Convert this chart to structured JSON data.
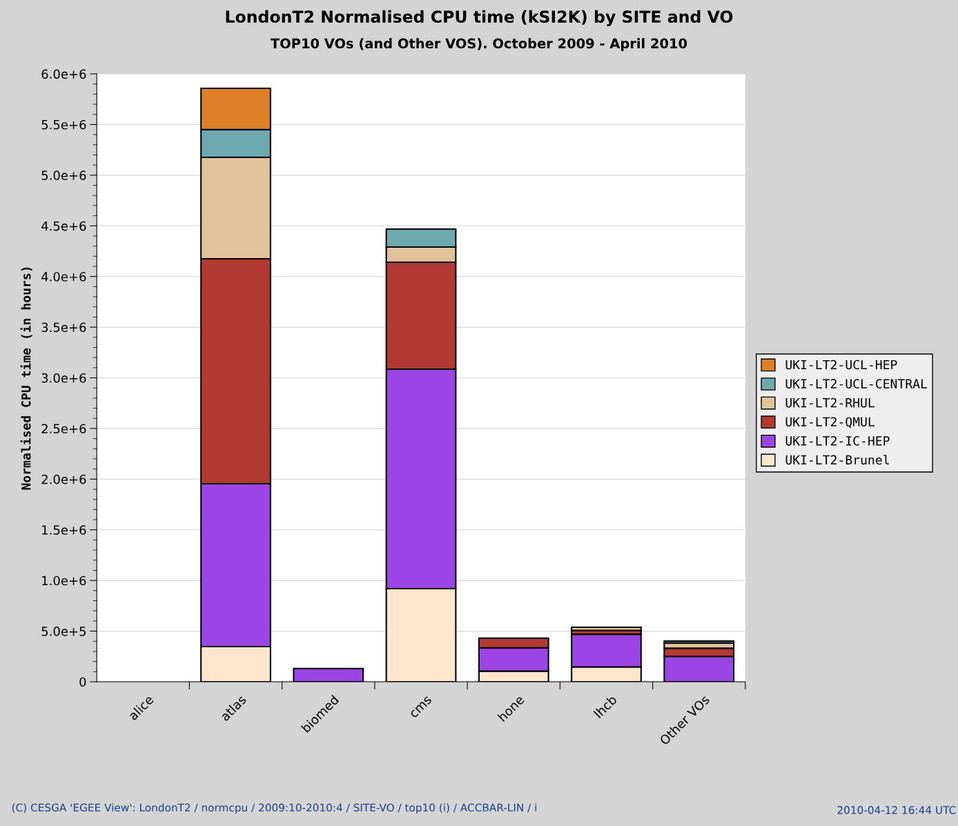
{
  "chart_data": {
    "type": "bar",
    "stacked": true,
    "title": "LondonT2 Normalised CPU time (kSI2K) by SITE and VO",
    "subtitle": "TOP10 VOs (and Other VOS). October 2009 - April 2010",
    "ylabel": "Normalised CPU time (in hours)",
    "categories": [
      "alice",
      "atlas",
      "biomed",
      "cms",
      "hone",
      "lhcb",
      "Other VOs"
    ],
    "series": [
      {
        "name": "UKI-LT2-Brunel",
        "color": "#ffe6cc",
        "values": [
          null,
          347000,
          null,
          919000,
          105000,
          146000,
          null
        ]
      },
      {
        "name": "UKI-LT2-IC-HEP",
        "color": "#9b45e4",
        "values": [
          null,
          1608000,
          130000,
          2166000,
          231000,
          323000,
          250000
        ]
      },
      {
        "name": "UKI-LT2-QMUL",
        "color": "#b33a33",
        "values": [
          null,
          2220000,
          null,
          1056000,
          94000,
          38000,
          81000
        ]
      },
      {
        "name": "UKI-LT2-RHUL",
        "color": "#e2c29a",
        "values": [
          null,
          1001000,
          null,
          150000,
          null,
          31000,
          51000
        ]
      },
      {
        "name": "UKI-LT2-UCL-CENTRAL",
        "color": "#6fa9b0",
        "values": [
          null,
          273000,
          null,
          177000,
          null,
          null,
          20000
        ]
      },
      {
        "name": "UKI-LT2-UCL-HEP",
        "color": "#dc7f26",
        "values": [
          null,
          408000,
          null,
          null,
          null,
          null,
          null
        ]
      }
    ],
    "ylim": [
      0,
      6000000
    ],
    "yticks": [
      0,
      {
        "value": 500000,
        "label": "5.0e+5"
      },
      {
        "value": 1000000,
        "label": "1.0e+6"
      },
      {
        "value": 1500000,
        "label": "1.5e+6"
      },
      {
        "value": 2000000,
        "label": "2.0e+6"
      },
      {
        "value": 2500000,
        "label": "2.5e+6"
      },
      {
        "value": 3000000,
        "label": "3.0e+6"
      },
      {
        "value": 3500000,
        "label": "3.5e+6"
      },
      {
        "value": 4000000,
        "label": "4.0e+6"
      },
      {
        "value": 4500000,
        "label": "4.5e+6"
      },
      {
        "value": 5000000,
        "label": "5.0e+6"
      },
      {
        "value": 5500000,
        "label": "5.5e+6"
      },
      {
        "value": 6000000,
        "label": "6.0e+6"
      }
    ],
    "grid": "y",
    "legend": "right",
    "annotations": [
      "(C) CESGA 'EGEE View': LondonT2 / normcpu / 2009:10-2010:4 / SITE-VO / top10 (i) / ACCBAR-LIN / i",
      "2010-04-12 16:44 UTC"
    ]
  }
}
